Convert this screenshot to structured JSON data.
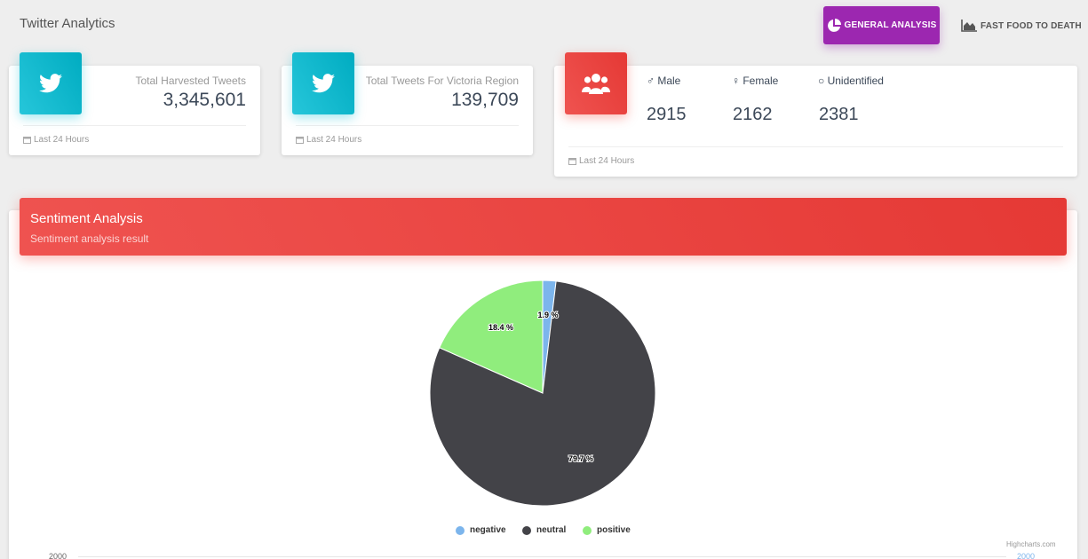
{
  "app": {
    "title": "Twitter Analytics"
  },
  "nav": {
    "general": {
      "label": "GENERAL ANALYSIS",
      "icon": "pie-chart-icon"
    },
    "fastfood": {
      "label": "FAST FOOD TO DEATH",
      "icon": "area-chart-icon"
    }
  },
  "stats": {
    "harvested": {
      "label": "Total Harvested Tweets",
      "value": "3,345,601",
      "footer": "Last 24 Hours",
      "icon": "twitter-icon"
    },
    "victoria": {
      "label": "Total Tweets For Victoria Region",
      "value": "139,709",
      "footer": "Last 24 Hours",
      "icon": "twitter-icon"
    },
    "gender": {
      "icon": "users-icon",
      "male": {
        "label": "Male",
        "value": "2915"
      },
      "female": {
        "label": "Female",
        "value": "2162"
      },
      "unidentified": {
        "label": "Unidentified",
        "value": "2381"
      },
      "footer": "Last 24 Hours"
    }
  },
  "sentiment": {
    "title": "Sentiment Analysis",
    "subtitle": "Sentiment analysis result",
    "credits": "Highcharts.com",
    "axis_left": "2000",
    "axis_right": "2000"
  },
  "chart_data": {
    "type": "pie",
    "series": [
      {
        "name": "negative",
        "value": 1.9,
        "label": "1.9 %",
        "color": "#7cb5ec"
      },
      {
        "name": "neutral",
        "value": 79.7,
        "label": "79.7 %",
        "color": "#434348"
      },
      {
        "name": "positive",
        "value": 18.4,
        "label": "18.4 %",
        "color": "#90ed7d"
      }
    ],
    "legend": "bottom-center"
  },
  "colors": {
    "accent_purple": "#9c27b0",
    "info_cyan": "#00acc1",
    "danger_red": "#e53935"
  }
}
